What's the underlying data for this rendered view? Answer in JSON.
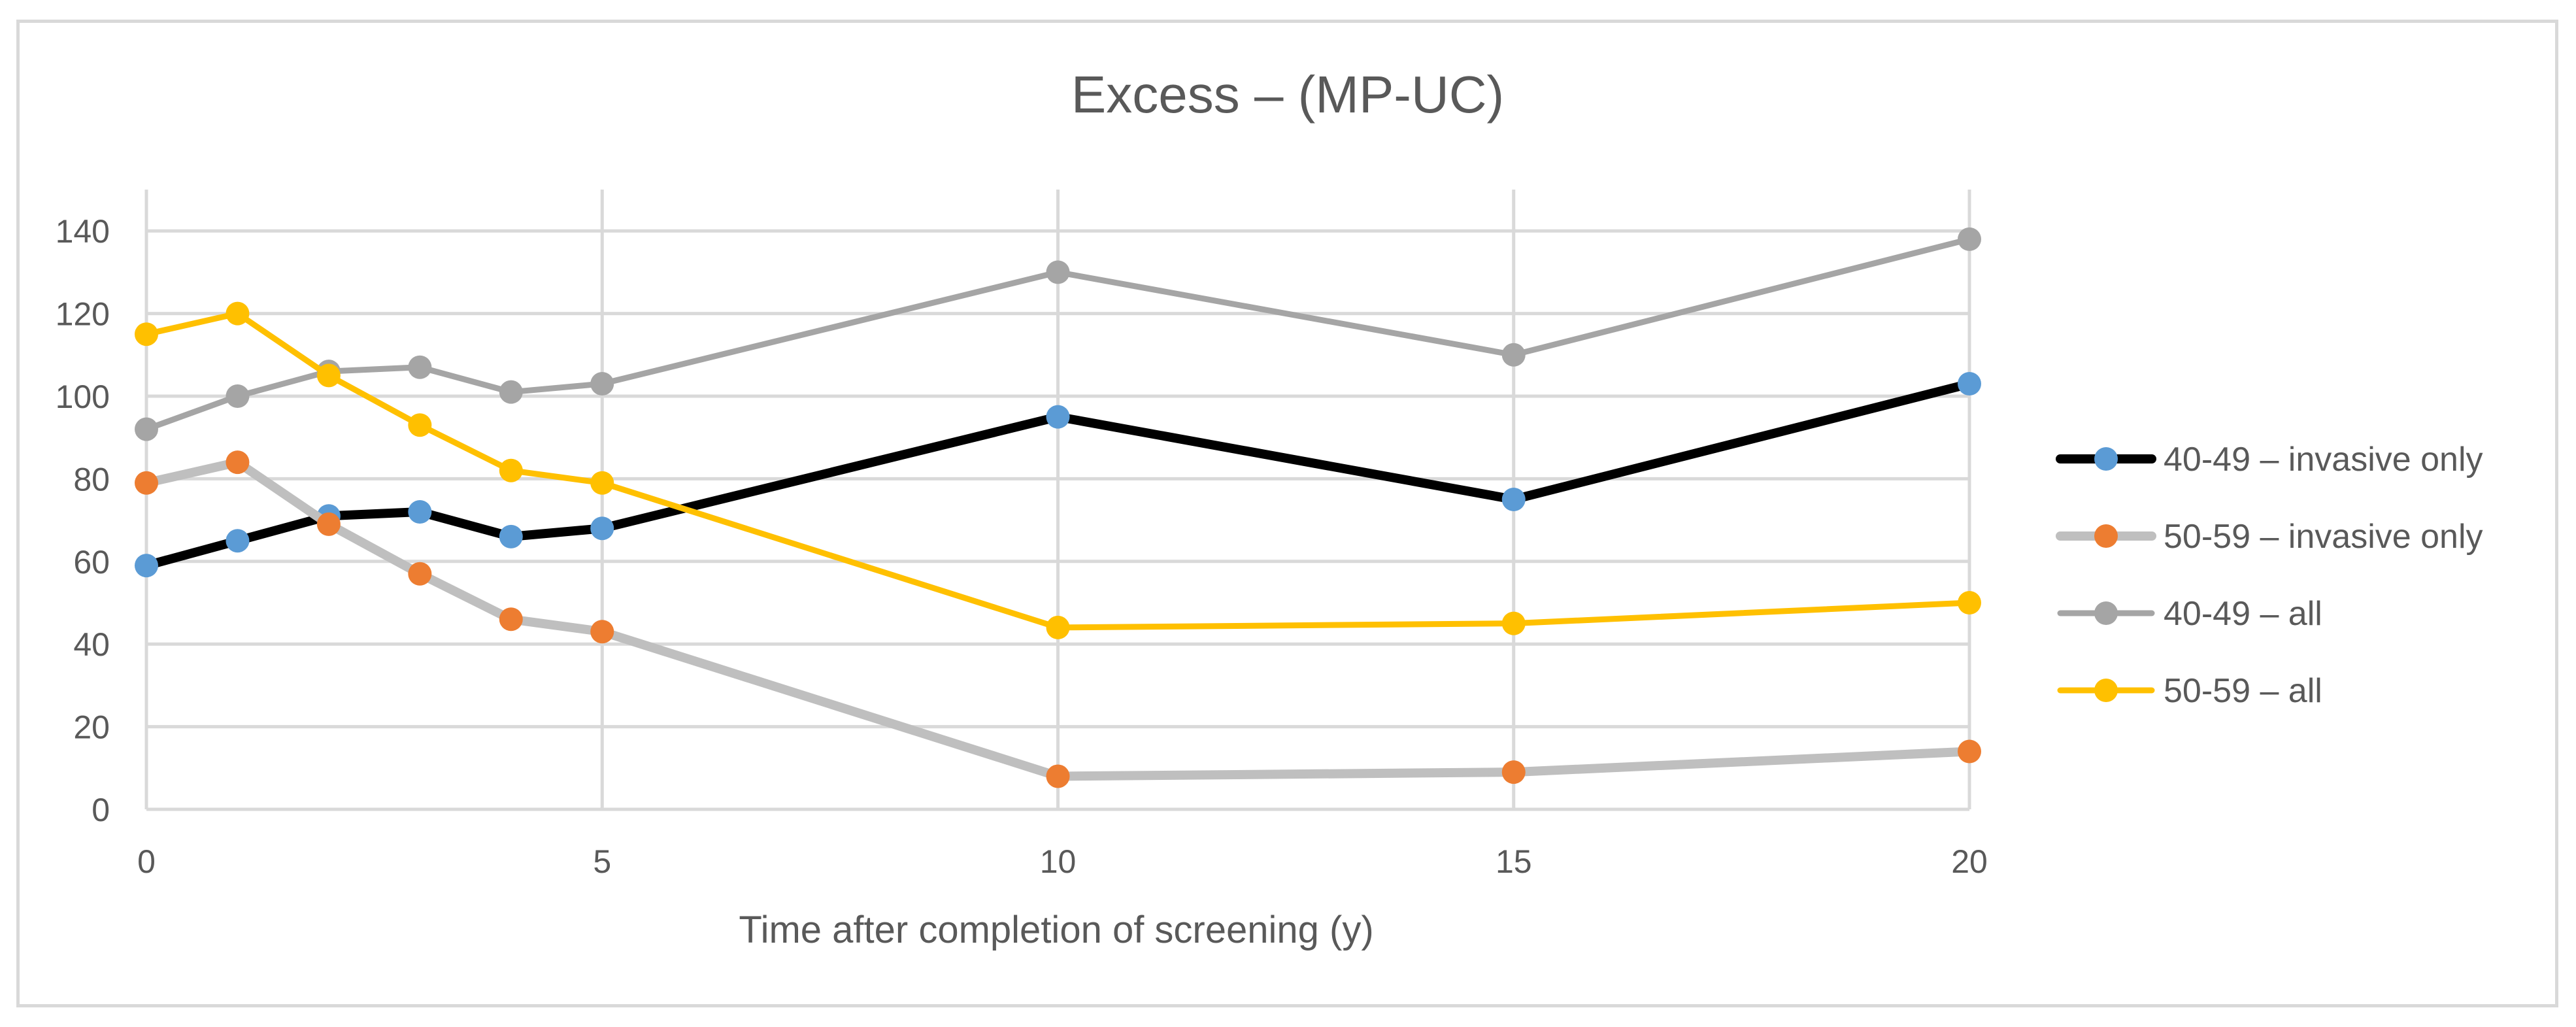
{
  "chart_data": {
    "type": "line",
    "title": "Excess – (MP-UC)",
    "xlabel": "Time after completion of screening (y)",
    "ylabel": "",
    "xlim": [
      0,
      20
    ],
    "ylim": [
      0,
      150
    ],
    "xticks": [
      0,
      5,
      10,
      15,
      20
    ],
    "yticks": [
      0,
      20,
      40,
      60,
      80,
      100,
      120,
      140
    ],
    "grid": true,
    "legend_position": "right",
    "series": [
      {
        "name": "40-49 – invasive only",
        "line_color": "#000000",
        "marker_color": "#5b9bd5",
        "x": [
          0,
          1,
          2,
          3,
          4,
          5,
          10,
          15,
          20
        ],
        "y": [
          59,
          65,
          71,
          72,
          66,
          68,
          95,
          75,
          103
        ]
      },
      {
        "name": "50-59 – invasive only",
        "line_color": "#bfbfbf",
        "marker_color": "#ed7d31",
        "x": [
          0,
          1,
          2,
          3,
          4,
          5,
          10,
          15,
          20
        ],
        "y": [
          79,
          84,
          69,
          57,
          46,
          43,
          8,
          9,
          14
        ]
      },
      {
        "name": "40-49 – all",
        "line_color": "#a5a5a5",
        "marker_color": "#a5a5a5",
        "x": [
          0,
          1,
          2,
          3,
          4,
          5,
          10,
          15,
          20
        ],
        "y": [
          92,
          100,
          106,
          107,
          101,
          103,
          130,
          110,
          138
        ]
      },
      {
        "name": "50-59 – all",
        "line_color": "#ffc000",
        "marker_color": "#ffc000",
        "x": [
          0,
          1,
          2,
          3,
          4,
          5,
          10,
          15,
          20
        ],
        "y": [
          115,
          120,
          105,
          93,
          82,
          79,
          44,
          45,
          50
        ]
      }
    ]
  }
}
